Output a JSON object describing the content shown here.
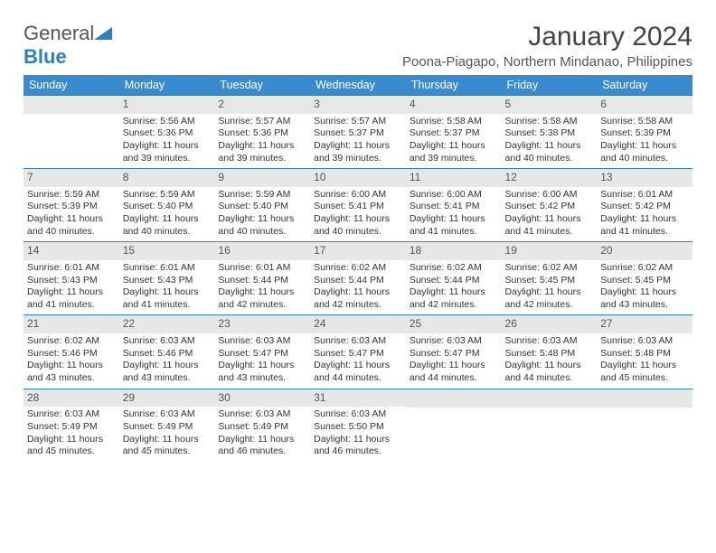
{
  "brand": {
    "name_part1": "General",
    "name_part2": "Blue"
  },
  "header": {
    "month_title": "January 2024",
    "location": "Poona-Piagapo, Northern Mindanao, Philippines"
  },
  "colors": {
    "header_bg": "#3a8bce",
    "header_text": "#ffffff",
    "daynum_bg": "#e7e7e7",
    "rule": "#2f7fc1",
    "text": "#333333",
    "background": "#ffffff"
  },
  "typography": {
    "base_font": "Arial",
    "month_title_size_pt": 22,
    "location_size_pt": 11,
    "header_cell_size_pt": 9.5,
    "body_size_pt": 8
  },
  "layout": {
    "type": "month-calendar",
    "columns": 7,
    "rows": 5,
    "first_day_column_index": 1
  },
  "calendar": {
    "day_headers": [
      "Sunday",
      "Monday",
      "Tuesday",
      "Wednesday",
      "Thursday",
      "Friday",
      "Saturday"
    ],
    "labels": {
      "sunrise_prefix": "Sunrise: ",
      "sunset_prefix": "Sunset: ",
      "daylight_prefix": "Daylight: "
    },
    "weeks": [
      [
        null,
        {
          "day": "1",
          "sunrise": "5:56 AM",
          "sunset": "5:36 PM",
          "daylight": "11 hours and 39 minutes."
        },
        {
          "day": "2",
          "sunrise": "5:57 AM",
          "sunset": "5:36 PM",
          "daylight": "11 hours and 39 minutes."
        },
        {
          "day": "3",
          "sunrise": "5:57 AM",
          "sunset": "5:37 PM",
          "daylight": "11 hours and 39 minutes."
        },
        {
          "day": "4",
          "sunrise": "5:58 AM",
          "sunset": "5:37 PM",
          "daylight": "11 hours and 39 minutes."
        },
        {
          "day": "5",
          "sunrise": "5:58 AM",
          "sunset": "5:38 PM",
          "daylight": "11 hours and 40 minutes."
        },
        {
          "day": "6",
          "sunrise": "5:58 AM",
          "sunset": "5:39 PM",
          "daylight": "11 hours and 40 minutes."
        }
      ],
      [
        {
          "day": "7",
          "sunrise": "5:59 AM",
          "sunset": "5:39 PM",
          "daylight": "11 hours and 40 minutes."
        },
        {
          "day": "8",
          "sunrise": "5:59 AM",
          "sunset": "5:40 PM",
          "daylight": "11 hours and 40 minutes."
        },
        {
          "day": "9",
          "sunrise": "5:59 AM",
          "sunset": "5:40 PM",
          "daylight": "11 hours and 40 minutes."
        },
        {
          "day": "10",
          "sunrise": "6:00 AM",
          "sunset": "5:41 PM",
          "daylight": "11 hours and 40 minutes."
        },
        {
          "day": "11",
          "sunrise": "6:00 AM",
          "sunset": "5:41 PM",
          "daylight": "11 hours and 41 minutes."
        },
        {
          "day": "12",
          "sunrise": "6:00 AM",
          "sunset": "5:42 PM",
          "daylight": "11 hours and 41 minutes."
        },
        {
          "day": "13",
          "sunrise": "6:01 AM",
          "sunset": "5:42 PM",
          "daylight": "11 hours and 41 minutes."
        }
      ],
      [
        {
          "day": "14",
          "sunrise": "6:01 AM",
          "sunset": "5:43 PM",
          "daylight": "11 hours and 41 minutes."
        },
        {
          "day": "15",
          "sunrise": "6:01 AM",
          "sunset": "5:43 PM",
          "daylight": "11 hours and 41 minutes."
        },
        {
          "day": "16",
          "sunrise": "6:01 AM",
          "sunset": "5:44 PM",
          "daylight": "11 hours and 42 minutes."
        },
        {
          "day": "17",
          "sunrise": "6:02 AM",
          "sunset": "5:44 PM",
          "daylight": "11 hours and 42 minutes."
        },
        {
          "day": "18",
          "sunrise": "6:02 AM",
          "sunset": "5:44 PM",
          "daylight": "11 hours and 42 minutes."
        },
        {
          "day": "19",
          "sunrise": "6:02 AM",
          "sunset": "5:45 PM",
          "daylight": "11 hours and 42 minutes."
        },
        {
          "day": "20",
          "sunrise": "6:02 AM",
          "sunset": "5:45 PM",
          "daylight": "11 hours and 43 minutes."
        }
      ],
      [
        {
          "day": "21",
          "sunrise": "6:02 AM",
          "sunset": "5:46 PM",
          "daylight": "11 hours and 43 minutes."
        },
        {
          "day": "22",
          "sunrise": "6:03 AM",
          "sunset": "5:46 PM",
          "daylight": "11 hours and 43 minutes."
        },
        {
          "day": "23",
          "sunrise": "6:03 AM",
          "sunset": "5:47 PM",
          "daylight": "11 hours and 43 minutes."
        },
        {
          "day": "24",
          "sunrise": "6:03 AM",
          "sunset": "5:47 PM",
          "daylight": "11 hours and 44 minutes."
        },
        {
          "day": "25",
          "sunrise": "6:03 AM",
          "sunset": "5:47 PM",
          "daylight": "11 hours and 44 minutes."
        },
        {
          "day": "26",
          "sunrise": "6:03 AM",
          "sunset": "5:48 PM",
          "daylight": "11 hours and 44 minutes."
        },
        {
          "day": "27",
          "sunrise": "6:03 AM",
          "sunset": "5:48 PM",
          "daylight": "11 hours and 45 minutes."
        }
      ],
      [
        {
          "day": "28",
          "sunrise": "6:03 AM",
          "sunset": "5:49 PM",
          "daylight": "11 hours and 45 minutes."
        },
        {
          "day": "29",
          "sunrise": "6:03 AM",
          "sunset": "5:49 PM",
          "daylight": "11 hours and 45 minutes."
        },
        {
          "day": "30",
          "sunrise": "6:03 AM",
          "sunset": "5:49 PM",
          "daylight": "11 hours and 46 minutes."
        },
        {
          "day": "31",
          "sunrise": "6:03 AM",
          "sunset": "5:50 PM",
          "daylight": "11 hours and 46 minutes."
        },
        null,
        null,
        null
      ]
    ]
  }
}
